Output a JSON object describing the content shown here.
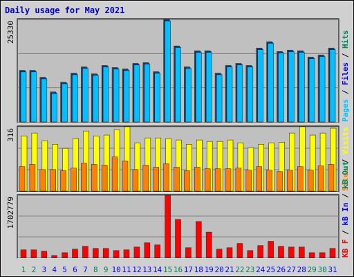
{
  "chart_data": [
    {
      "type": "bar",
      "title": "Daily usage for May 2021",
      "ylim": [
        0,
        25330
      ],
      "yticks": [
        25330
      ],
      "series": [
        {
          "name": "Hits",
          "color": "#00805c",
          "values": [
            12750,
            12750,
            11030,
            7410,
            9820,
            12060,
            13610,
            11890,
            13960,
            13440,
            13100,
            14470,
            14650,
            12410,
            25330,
            18780,
            13610,
            17580,
            17580,
            12060,
            13960,
            14470,
            13960,
            18260,
            19820,
            17400,
            17750,
            17580,
            16020,
            16540,
            18260
          ]
        },
        {
          "name": "Files",
          "color": "#0000ff",
          "values": [
            12550,
            12550,
            10830,
            7210,
            9620,
            11860,
            13410,
            11690,
            13760,
            13240,
            12900,
            14270,
            14450,
            12210,
            25130,
            18580,
            13410,
            17380,
            17380,
            11860,
            13760,
            14270,
            13760,
            18060,
            19620,
            17200,
            17550,
            17380,
            15820,
            16340,
            18060
          ]
        },
        {
          "name": "Pages",
          "color": "#00c0ff",
          "values": [
            12350,
            12350,
            10630,
            7010,
            9420,
            11660,
            13210,
            11490,
            13560,
            13040,
            12700,
            14070,
            14250,
            12010,
            24930,
            18380,
            13210,
            17180,
            17180,
            11660,
            13560,
            14070,
            13560,
            17860,
            19420,
            17000,
            17350,
            17180,
            15620,
            16140,
            17860
          ]
        }
      ]
    },
    {
      "type": "bar",
      "ylim": [
        0,
        316
      ],
      "yticks": [
        316
      ],
      "series": [
        {
          "name": "Visits",
          "color": "#ffff00",
          "values": [
            271,
            285,
            247,
            230,
            210,
            258,
            295,
            271,
            275,
            302,
            316,
            237,
            261,
            261,
            258,
            251,
            230,
            251,
            244,
            244,
            251,
            237,
            213,
            230,
            237,
            240,
            285,
            316,
            275,
            285,
            309
          ]
        },
        {
          "name": "Sites",
          "color": "#ff8000",
          "values": [
            120,
            131,
            106,
            106,
            100,
            113,
            137,
            131,
            127,
            168,
            148,
            106,
            127,
            117,
            134,
            117,
            100,
            117,
            110,
            110,
            110,
            113,
            103,
            120,
            103,
            96,
            103,
            120,
            103,
            124,
            131
          ]
        }
      ]
    },
    {
      "type": "bar",
      "ylim": [
        0,
        1702779
      ],
      "yticks": [
        1702779
      ],
      "categories": [
        "1",
        "2",
        "3",
        "4",
        "5",
        "6",
        "7",
        "8",
        "9",
        "10",
        "11",
        "12",
        "13",
        "14",
        "15",
        "16",
        "17",
        "18",
        "19",
        "20",
        "21",
        "22",
        "23",
        "24",
        "25",
        "26",
        "27",
        "28",
        "29",
        "30",
        "31"
      ],
      "category_colors": [
        "#00805c",
        "#00805c",
        "#0000ff",
        "#0000ff",
        "#0000ff",
        "#0000ff",
        "#0000ff",
        "#00805c",
        "#00805c",
        "#0000ff",
        "#0000ff",
        "#0000ff",
        "#0000ff",
        "#0000ff",
        "#00805c",
        "#00805c",
        "#0000ff",
        "#0000ff",
        "#0000ff",
        "#0000ff",
        "#0000ff",
        "#00805c",
        "#00805c",
        "#0000ff",
        "#0000ff",
        "#0000ff",
        "#0000ff",
        "#0000ff",
        "#00805c",
        "#00805c",
        "#0000ff"
      ],
      "series": [
        {
          "name": "KB F",
          "color": "#ff0000",
          "values": [
            212850,
            212850,
            174150,
            58050,
            135450,
            232200,
            309600,
            251550,
            251550,
            193500,
            212850,
            290250,
            406350,
            348300,
            1702779,
            1044900,
            270900,
            986850,
            696600,
            232200,
            270900,
            387000,
            193500,
            328950,
            445050,
            309600,
            290250,
            290250,
            135450,
            135450,
            251550
          ]
        }
      ],
      "legend_extra": [
        {
          "label": "kB In",
          "color": "#0000ff"
        },
        {
          "label": "kB Out",
          "color": "#00805c"
        }
      ]
    }
  ]
}
